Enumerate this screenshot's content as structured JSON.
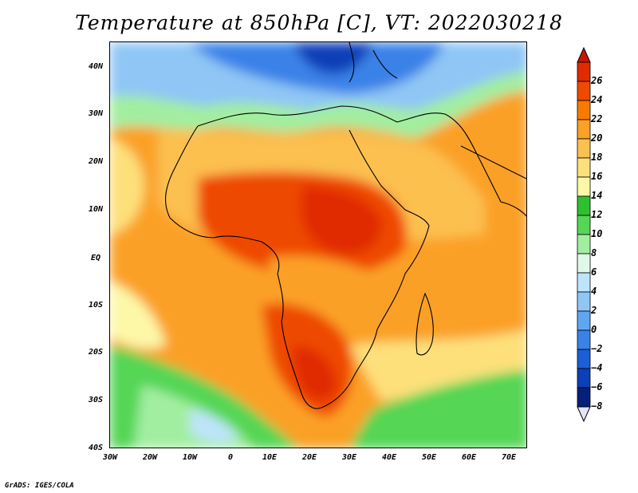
{
  "title": "Temperature at 850hPa [C], VT: 2022030218",
  "credit": "GrADS: IGES/COLA",
  "variable": "Temperature",
  "level": "850hPa",
  "units": "C",
  "valid_time": "2022030218",
  "map": {
    "lon_range": [
      -30,
      75
    ],
    "lat_range": [
      -40,
      45
    ],
    "lat_labels": [
      "40N",
      "30N",
      "20N",
      "10N",
      "EQ",
      "10S",
      "20S",
      "30S",
      "40S"
    ],
    "lon_labels": [
      "30W",
      "20W",
      "10W",
      "0",
      "10E",
      "20E",
      "30E",
      "40E",
      "50E",
      "60E",
      "70E"
    ]
  },
  "colorbar": {
    "labels": [
      "26",
      "24",
      "22",
      "20",
      "18",
      "16",
      "14",
      "12",
      "10",
      "8",
      "6",
      "4",
      "2",
      "0",
      "−2",
      "−4",
      "−6",
      "−8"
    ],
    "colors": [
      "#e02a00",
      "#ee4a00",
      "#f87a00",
      "#fba028",
      "#fcc050",
      "#fde07a",
      "#fdf8a8",
      "#2fc02f",
      "#55d655",
      "#a2eea0",
      "#e0f8e8",
      "#bde4fa",
      "#8fc6f5",
      "#5fa6f0",
      "#3a82e8",
      "#1c5ed6",
      "#0c3fb8",
      "#06207a"
    ],
    "over_color": "#c61a00",
    "under_color": "#e4e4fa"
  }
}
